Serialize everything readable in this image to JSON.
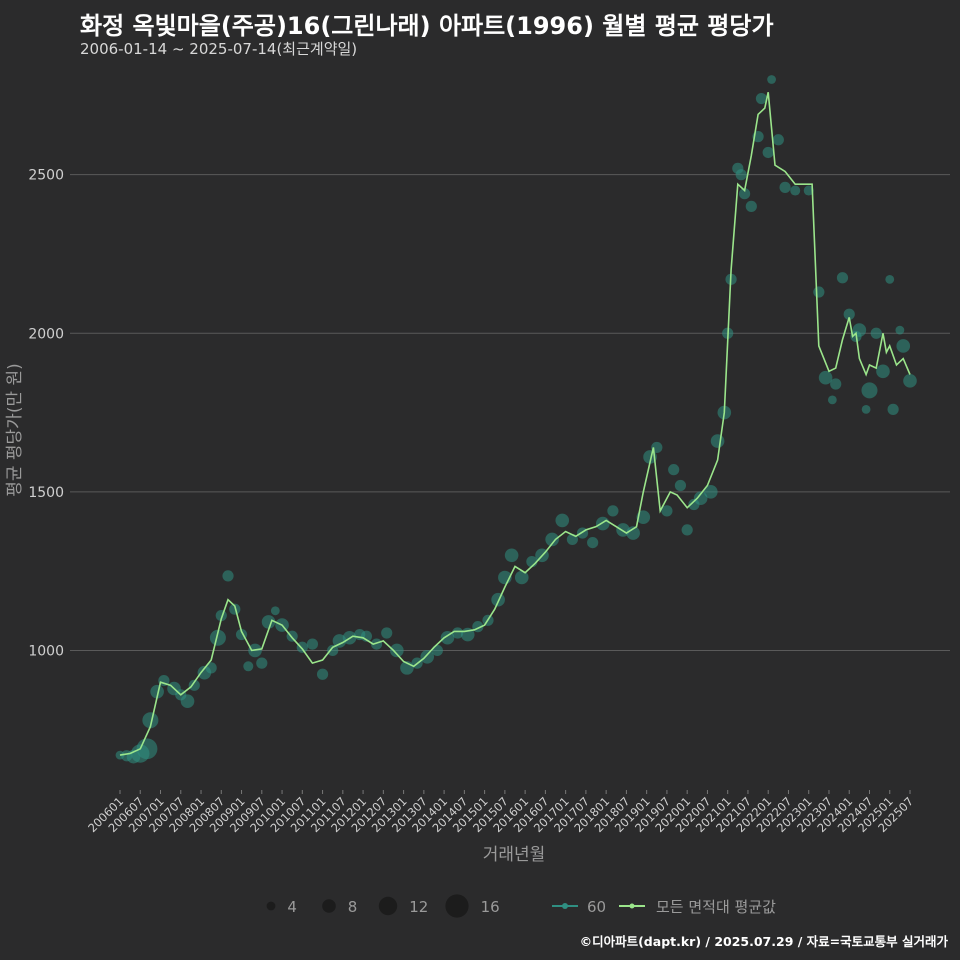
{
  "header": {
    "title": "화정 옥빛마을(주공)16(그린나래) 아파트(1996) 월별 평균 평당가",
    "subtitle": "2006-01-14 ~ 2025-07-14(최근계약일)"
  },
  "footer": {
    "credit": "©디아파트(dapt.kr) / 2025.07.29 / 자료=국토교통부 실거래가"
  },
  "colors": {
    "background": "#2b2b2c",
    "grid": "#5a5a5a",
    "line": "#9be58b",
    "bubble": "#2f8f82",
    "legendDot": "#1c1c1c"
  },
  "legend": {
    "size_labels": [
      "4",
      "8",
      "12",
      "16"
    ],
    "size_values": [
      4,
      8,
      12,
      16
    ],
    "series_label_60": "60",
    "series_label_avg": "모든 면적대 평균값"
  },
  "chart_data": {
    "type": "line",
    "title": "화정 옥빛마을(주공)16(그린나래) 아파트(1996) 월별 평균 평당가",
    "xlabel": "거래년월",
    "ylabel": "평균 평당가(만 원)",
    "ylim": [
      560,
      2830
    ],
    "yticks": [
      1000,
      1500,
      2000,
      2500
    ],
    "x_tick_labels": [
      "200601",
      "200607",
      "200701",
      "200707",
      "200801",
      "200807",
      "200901",
      "200907",
      "201001",
      "201007",
      "201101",
      "201107",
      "201201",
      "201207",
      "201301",
      "201307",
      "201401",
      "201407",
      "201501",
      "201507",
      "201601",
      "201607",
      "201701",
      "201707",
      "201801",
      "201807",
      "201901",
      "201907",
      "202001",
      "202007",
      "202101",
      "202107",
      "202201",
      "202207",
      "202301",
      "202307",
      "202401",
      "202407",
      "202501",
      "202507"
    ],
    "x_range": [
      "2006-01",
      "2025-07"
    ],
    "series": [
      {
        "name": "모든 면적대 평균값",
        "points": [
          [
            "2006-01",
            670
          ],
          [
            "2006-04",
            675
          ],
          [
            "2006-07",
            690
          ],
          [
            "2006-10",
            760
          ],
          [
            "2007-01",
            900
          ],
          [
            "2007-04",
            890
          ],
          [
            "2007-07",
            860
          ],
          [
            "2007-10",
            885
          ],
          [
            "2008-01",
            930
          ],
          [
            "2008-04",
            970
          ],
          [
            "2008-07",
            1100
          ],
          [
            "2008-09",
            1160
          ],
          [
            "2008-11",
            1140
          ],
          [
            "2009-01",
            1060
          ],
          [
            "2009-04",
            1000
          ],
          [
            "2009-07",
            1005
          ],
          [
            "2009-10",
            1095
          ],
          [
            "2010-01",
            1080
          ],
          [
            "2010-04",
            1040
          ],
          [
            "2010-07",
            1005
          ],
          [
            "2010-10",
            960
          ],
          [
            "2011-01",
            970
          ],
          [
            "2011-04",
            1010
          ],
          [
            "2011-07",
            1025
          ],
          [
            "2011-10",
            1045
          ],
          [
            "2012-01",
            1040
          ],
          [
            "2012-04",
            1020
          ],
          [
            "2012-07",
            1030
          ],
          [
            "2012-10",
            1000
          ],
          [
            "2013-01",
            965
          ],
          [
            "2013-04",
            950
          ],
          [
            "2013-07",
            975
          ],
          [
            "2013-10",
            1010
          ],
          [
            "2014-01",
            1040
          ],
          [
            "2014-04",
            1060
          ],
          [
            "2014-07",
            1060
          ],
          [
            "2014-10",
            1065
          ],
          [
            "2015-01",
            1080
          ],
          [
            "2015-04",
            1130
          ],
          [
            "2015-07",
            1200
          ],
          [
            "2015-10",
            1265
          ],
          [
            "2016-01",
            1245
          ],
          [
            "2016-04",
            1275
          ],
          [
            "2016-07",
            1310
          ],
          [
            "2016-10",
            1350
          ],
          [
            "2017-01",
            1375
          ],
          [
            "2017-04",
            1360
          ],
          [
            "2017-07",
            1380
          ],
          [
            "2017-10",
            1390
          ],
          [
            "2018-01",
            1410
          ],
          [
            "2018-04",
            1390
          ],
          [
            "2018-07",
            1370
          ],
          [
            "2018-10",
            1390
          ],
          [
            "2018-12",
            1500
          ],
          [
            "2019-03",
            1640
          ],
          [
            "2019-05",
            1440
          ],
          [
            "2019-08",
            1500
          ],
          [
            "2019-10",
            1490
          ],
          [
            "2020-01",
            1450
          ],
          [
            "2020-04",
            1480
          ],
          [
            "2020-07",
            1520
          ],
          [
            "2020-10",
            1600
          ],
          [
            "2020-12",
            1750
          ],
          [
            "2021-02",
            2200
          ],
          [
            "2021-04",
            2470
          ],
          [
            "2021-06",
            2450
          ],
          [
            "2021-08",
            2560
          ],
          [
            "2021-10",
            2690
          ],
          [
            "2021-12",
            2710
          ],
          [
            "2022-01",
            2760
          ],
          [
            "2022-03",
            2530
          ],
          [
            "2022-06",
            2510
          ],
          [
            "2022-09",
            2470
          ],
          [
            "2022-12",
            2470
          ],
          [
            "2023-02",
            2470
          ],
          [
            "2023-04",
            1960
          ],
          [
            "2023-07",
            1880
          ],
          [
            "2023-09",
            1890
          ],
          [
            "2023-11",
            1980
          ],
          [
            "2024-01",
            2050
          ],
          [
            "2024-02",
            1990
          ],
          [
            "2024-03",
            2000
          ],
          [
            "2024-04",
            1920
          ],
          [
            "2024-06",
            1870
          ],
          [
            "2024-07",
            1900
          ],
          [
            "2024-09",
            1890
          ],
          [
            "2024-11",
            2000
          ],
          [
            "2024-12",
            1940
          ],
          [
            "2025-01",
            1960
          ],
          [
            "2025-03",
            1900
          ],
          [
            "2025-05",
            1920
          ],
          [
            "2025-07",
            1870
          ]
        ]
      },
      {
        "name": "60",
        "type": "scatter",
        "points": [
          [
            "2006-01",
            670,
            4
          ],
          [
            "2006-03",
            668,
            6
          ],
          [
            "2006-05",
            665,
            8
          ],
          [
            "2006-07",
            675,
            12
          ],
          [
            "2006-09",
            690,
            14
          ],
          [
            "2006-10",
            780,
            10
          ],
          [
            "2006-12",
            870,
            8
          ],
          [
            "2007-02",
            905,
            6
          ],
          [
            "2007-05",
            880,
            8
          ],
          [
            "2007-07",
            860,
            6
          ],
          [
            "2007-09",
            840,
            8
          ],
          [
            "2007-11",
            890,
            6
          ],
          [
            "2008-02",
            930,
            8
          ],
          [
            "2008-04",
            945,
            6
          ],
          [
            "2008-06",
            1040,
            10
          ],
          [
            "2008-07",
            1110,
            6
          ],
          [
            "2008-09",
            1235,
            6
          ],
          [
            "2008-11",
            1130,
            6
          ],
          [
            "2009-01",
            1050,
            6
          ],
          [
            "2009-03",
            950,
            5
          ],
          [
            "2009-05",
            1000,
            8
          ],
          [
            "2009-07",
            960,
            6
          ],
          [
            "2009-09",
            1090,
            8
          ],
          [
            "2009-11",
            1125,
            4
          ],
          [
            "2010-01",
            1080,
            8
          ],
          [
            "2010-04",
            1045,
            6
          ],
          [
            "2010-07",
            1010,
            6
          ],
          [
            "2010-10",
            1020,
            6
          ],
          [
            "2011-01",
            925,
            6
          ],
          [
            "2011-04",
            1000,
            6
          ],
          [
            "2011-06",
            1030,
            8
          ],
          [
            "2011-09",
            1040,
            8
          ],
          [
            "2011-12",
            1050,
            6
          ],
          [
            "2012-02",
            1045,
            6
          ],
          [
            "2012-05",
            1020,
            6
          ],
          [
            "2012-08",
            1055,
            6
          ],
          [
            "2012-11",
            1000,
            8
          ],
          [
            "2013-02",
            945,
            8
          ],
          [
            "2013-05",
            960,
            6
          ],
          [
            "2013-08",
            980,
            8
          ],
          [
            "2013-11",
            1000,
            6
          ],
          [
            "2014-02",
            1040,
            8
          ],
          [
            "2014-05",
            1055,
            6
          ],
          [
            "2014-08",
            1050,
            8
          ],
          [
            "2014-11",
            1075,
            6
          ],
          [
            "2015-02",
            1095,
            6
          ],
          [
            "2015-05",
            1160,
            8
          ],
          [
            "2015-07",
            1230,
            8
          ],
          [
            "2015-09",
            1300,
            8
          ],
          [
            "2015-12",
            1230,
            8
          ],
          [
            "2016-03",
            1280,
            6
          ],
          [
            "2016-06",
            1300,
            8
          ],
          [
            "2016-09",
            1350,
            8
          ],
          [
            "2016-12",
            1410,
            8
          ],
          [
            "2017-03",
            1350,
            6
          ],
          [
            "2017-06",
            1370,
            6
          ],
          [
            "2017-09",
            1340,
            6
          ],
          [
            "2017-12",
            1400,
            8
          ],
          [
            "2018-03",
            1440,
            6
          ],
          [
            "2018-06",
            1380,
            8
          ],
          [
            "2018-09",
            1370,
            8
          ],
          [
            "2018-12",
            1420,
            8
          ],
          [
            "2019-02",
            1610,
            8
          ],
          [
            "2019-04",
            1640,
            6
          ],
          [
            "2019-07",
            1440,
            6
          ],
          [
            "2019-09",
            1570,
            6
          ],
          [
            "2019-11",
            1520,
            6
          ],
          [
            "2020-01",
            1380,
            6
          ],
          [
            "2020-03",
            1460,
            6
          ],
          [
            "2020-05",
            1480,
            8
          ],
          [
            "2020-08",
            1500,
            8
          ],
          [
            "2020-10",
            1660,
            8
          ],
          [
            "2020-12",
            1750,
            8
          ],
          [
            "2021-01",
            2000,
            6
          ],
          [
            "2021-02",
            2170,
            6
          ],
          [
            "2021-04",
            2520,
            6
          ],
          [
            "2021-05",
            2500,
            6
          ],
          [
            "2021-06",
            2440,
            6
          ],
          [
            "2021-08",
            2400,
            6
          ],
          [
            "2021-10",
            2620,
            6
          ],
          [
            "2021-11",
            2740,
            6
          ],
          [
            "2022-01",
            2570,
            6
          ],
          [
            "2022-02",
            2800,
            4
          ],
          [
            "2022-04",
            2610,
            6
          ],
          [
            "2022-06",
            2460,
            6
          ],
          [
            "2022-09",
            2450,
            5
          ],
          [
            "2023-01",
            2450,
            5
          ],
          [
            "2023-04",
            2130,
            6
          ],
          [
            "2023-06",
            1860,
            8
          ],
          [
            "2023-08",
            1790,
            4
          ],
          [
            "2023-09",
            1840,
            6
          ],
          [
            "2023-11",
            2175,
            6
          ],
          [
            "2024-01",
            2060,
            6
          ],
          [
            "2024-03",
            1990,
            6
          ],
          [
            "2024-04",
            2010,
            8
          ],
          [
            "2024-06",
            1760,
            4
          ],
          [
            "2024-07",
            1820,
            10
          ],
          [
            "2024-09",
            2000,
            6
          ],
          [
            "2024-11",
            1880,
            8
          ],
          [
            "2025-01",
            2170,
            4
          ],
          [
            "2025-02",
            1760,
            6
          ],
          [
            "2025-04",
            2010,
            4
          ],
          [
            "2025-05",
            1960,
            8
          ],
          [
            "2025-07",
            1850,
            8
          ]
        ]
      }
    ]
  }
}
